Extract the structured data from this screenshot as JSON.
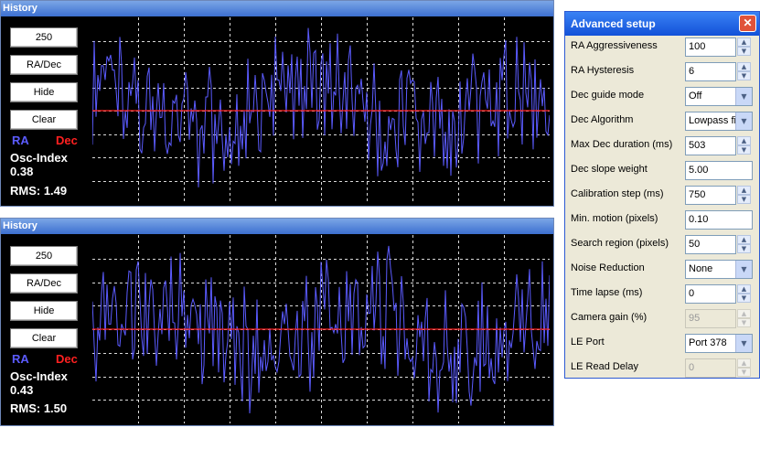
{
  "history_panels": [
    {
      "title": "History",
      "buttons": [
        "250",
        "RA/Dec",
        "Hide",
        "Clear"
      ],
      "ra_label": "RA",
      "dec_label": "Dec",
      "osc_label": "Osc-Index",
      "osc_value": "0.38",
      "rms": "RMS: 1.49",
      "colors": {
        "ra": "#5b5bff",
        "dec": "#ff2020",
        "grid": "#ffffff",
        "background": "#000000"
      }
    },
    {
      "title": "History",
      "buttons": [
        "250",
        "RA/Dec",
        "Hide",
        "Clear"
      ],
      "ra_label": "RA",
      "dec_label": "Dec",
      "osc_label": "Osc-Index",
      "osc_value": "0.43",
      "rms": "RMS: 1.50",
      "colors": {
        "ra": "#5b5bff",
        "dec": "#ff2020",
        "grid": "#ffffff",
        "background": "#000000"
      }
    }
  ],
  "setup": {
    "title": "Advanced setup",
    "close_glyph": "✕",
    "rows": [
      {
        "label": "RA Aggressiveness",
        "value": "100",
        "kind": "spin"
      },
      {
        "label": "RA Hysteresis",
        "value": "6",
        "kind": "spin"
      },
      {
        "label": "Dec guide mode",
        "value": "Off",
        "kind": "select"
      },
      {
        "label": "Dec Algorithm",
        "value": "Lowpass fil",
        "kind": "select"
      },
      {
        "label": "Max Dec duration (ms)",
        "value": "503",
        "kind": "spin"
      },
      {
        "label": "Dec slope weight",
        "value": "5.00",
        "kind": "text"
      },
      {
        "label": "Calibration step (ms)",
        "value": "750",
        "kind": "spin"
      },
      {
        "label": "Min. motion (pixels)",
        "value": "0.10",
        "kind": "text"
      },
      {
        "label": "Search region (pixels)",
        "value": "50",
        "kind": "spin"
      },
      {
        "label": "Noise Reduction",
        "value": "None",
        "kind": "select"
      },
      {
        "label": "Time lapse (ms)",
        "value": "0",
        "kind": "spin"
      },
      {
        "label": "Camera gain (%)",
        "value": "95",
        "kind": "spin-disabled"
      },
      {
        "label": "LE Port",
        "value": "Port 378",
        "kind": "select"
      },
      {
        "label": "LE Read Delay",
        "value": "0",
        "kind": "spin-disabled"
      }
    ]
  }
}
